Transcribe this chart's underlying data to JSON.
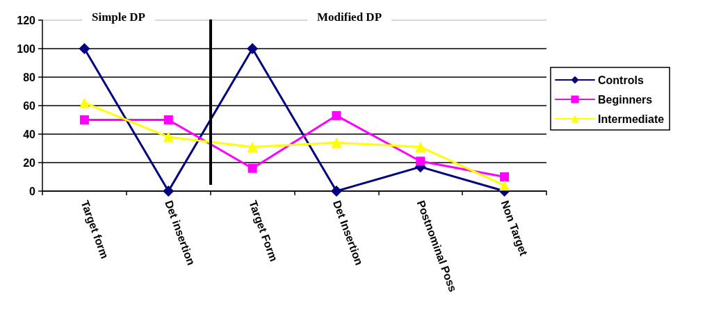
{
  "chart_data": {
    "type": "line",
    "categories": [
      "Target form",
      "Det insertion",
      "Target Form",
      "Det Insertion",
      "Postnominal Poss",
      "Non Target"
    ],
    "series": [
      {
        "name": "Controls",
        "color": "#000080",
        "marker": "diamond",
        "values": [
          100,
          0,
          100,
          0,
          17,
          0
        ]
      },
      {
        "name": "Beginners",
        "color": "#ff00ff",
        "marker": "square",
        "values": [
          50,
          50,
          16,
          53,
          21,
          10
        ]
      },
      {
        "name": "Intermediate",
        "color": "#ffff00",
        "marker": "triangle",
        "values": [
          62,
          38,
          31,
          34,
          31,
          4
        ]
      }
    ],
    "ylim": [
      0,
      120
    ],
    "yticks": [
      0,
      20,
      40,
      60,
      80,
      100,
      120
    ],
    "annotations": [
      "Simple DP",
      "Modified DP"
    ],
    "grid": "y",
    "legend": "right",
    "line_style": "solid"
  }
}
